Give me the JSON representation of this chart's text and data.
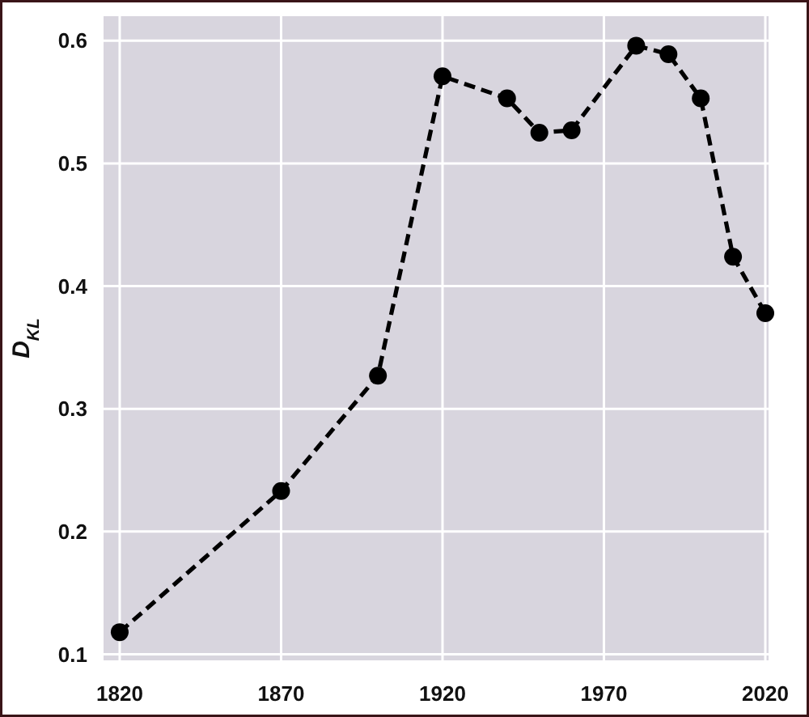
{
  "chart_data": {
    "type": "line",
    "ylabel": "D$_{KL}$",
    "x": [
      1820,
      1870,
      1900,
      1920,
      1940,
      1950,
      1960,
      1980,
      1990,
      2000,
      2010,
      2020
    ],
    "series": [
      {
        "color": "#000000",
        "values": [
          0.118,
          0.233,
          0.327,
          0.571,
          0.553,
          0.525,
          0.527,
          0.596,
          0.589,
          0.553,
          0.424,
          0.378
        ]
      }
    ],
    "xlim": [
      1815,
      2021
    ],
    "ylim": [
      0.095,
      0.62
    ],
    "xticks": [
      1820,
      1870,
      1920,
      1970,
      2020
    ],
    "yticks": [
      0.1,
      0.2,
      0.3,
      0.4,
      0.5,
      0.6
    ],
    "grid": true,
    "marker": "circle",
    "line_style": "dashed"
  }
}
